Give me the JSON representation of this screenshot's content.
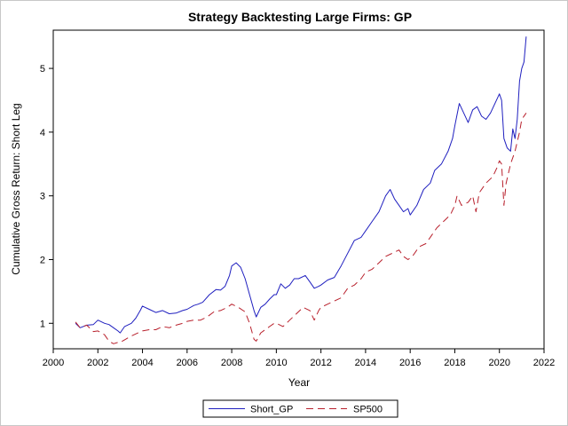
{
  "chart_data": {
    "type": "line",
    "title": "Strategy Backtesting Large Firms: GP",
    "xlabel": "Year",
    "ylabel": "Cumulative Gross Return: Short Leg",
    "xlim": [
      2000,
      2022
    ],
    "ylim": [
      0.6,
      5.6
    ],
    "x_ticks": [
      2000,
      2002,
      2004,
      2006,
      2008,
      2010,
      2012,
      2014,
      2016,
      2018,
      2020,
      2022
    ],
    "y_ticks": [
      1,
      2,
      3,
      4,
      5
    ],
    "grid": false,
    "legend_position": "bottom-center",
    "series": [
      {
        "name": "Short_GP",
        "color": "#1f1fbf",
        "dash": "solid",
        "x": [
          2001.0,
          2001.2,
          2001.5,
          2001.8,
          2002.0,
          2002.3,
          2002.5,
          2002.7,
          2002.9,
          2003.0,
          2003.2,
          2003.5,
          2003.7,
          2003.9,
          2004.0,
          2004.3,
          2004.6,
          2004.9,
          2005.2,
          2005.5,
          2005.8,
          2006.0,
          2006.3,
          2006.5,
          2006.7,
          2007.0,
          2007.3,
          2007.5,
          2007.7,
          2007.9,
          2008.0,
          2008.2,
          2008.4,
          2008.6,
          2008.8,
          2009.0,
          2009.1,
          2009.3,
          2009.5,
          2009.7,
          2009.9,
          2010.0,
          2010.2,
          2010.4,
          2010.6,
          2010.8,
          2011.0,
          2011.3,
          2011.5,
          2011.7,
          2011.9,
          2012.0,
          2012.3,
          2012.6,
          2012.9,
          2013.2,
          2013.5,
          2013.8,
          2014.0,
          2014.3,
          2014.6,
          2014.9,
          2015.1,
          2015.3,
          2015.5,
          2015.7,
          2015.9,
          2016.0,
          2016.3,
          2016.6,
          2016.9,
          2017.1,
          2017.4,
          2017.7,
          2017.9,
          2018.0,
          2018.2,
          2018.4,
          2018.6,
          2018.8,
          2019.0,
          2019.2,
          2019.4,
          2019.6,
          2019.8,
          2020.0,
          2020.1,
          2020.2,
          2020.35,
          2020.5,
          2020.6,
          2020.7,
          2020.8,
          2020.9,
          2021.0,
          2021.1,
          2021.2
        ],
        "y": [
          1.0,
          0.93,
          0.97,
          0.98,
          1.05,
          1.0,
          0.98,
          0.93,
          0.88,
          0.85,
          0.95,
          1.0,
          1.08,
          1.2,
          1.27,
          1.22,
          1.17,
          1.2,
          1.15,
          1.16,
          1.2,
          1.22,
          1.28,
          1.3,
          1.33,
          1.45,
          1.53,
          1.52,
          1.58,
          1.75,
          1.9,
          1.95,
          1.88,
          1.7,
          1.45,
          1.2,
          1.1,
          1.25,
          1.3,
          1.38,
          1.45,
          1.45,
          1.62,
          1.55,
          1.6,
          1.7,
          1.7,
          1.75,
          1.65,
          1.55,
          1.58,
          1.6,
          1.68,
          1.72,
          1.9,
          2.1,
          2.3,
          2.35,
          2.45,
          2.6,
          2.75,
          3.0,
          3.1,
          2.95,
          2.85,
          2.75,
          2.8,
          2.7,
          2.85,
          3.1,
          3.2,
          3.4,
          3.5,
          3.7,
          3.9,
          4.1,
          4.45,
          4.3,
          4.15,
          4.35,
          4.4,
          4.25,
          4.2,
          4.3,
          4.45,
          4.6,
          4.5,
          3.9,
          3.75,
          3.7,
          4.05,
          3.9,
          4.2,
          4.8,
          5.0,
          5.1,
          5.5
        ]
      },
      {
        "name": "SP500",
        "color": "#b8202c",
        "dash": "dashed",
        "x": [
          2001.0,
          2001.2,
          2001.5,
          2001.8,
          2002.0,
          2002.3,
          2002.5,
          2002.7,
          2002.9,
          2003.0,
          2003.2,
          2003.5,
          2003.8,
          2004.0,
          2004.3,
          2004.6,
          2004.9,
          2005.2,
          2005.5,
          2005.8,
          2006.0,
          2006.3,
          2006.6,
          2006.9,
          2007.2,
          2007.5,
          2007.8,
          2008.0,
          2008.3,
          2008.6,
          2008.8,
          2009.0,
          2009.1,
          2009.3,
          2009.5,
          2009.7,
          2009.9,
          2010.0,
          2010.3,
          2010.6,
          2010.9,
          2011.2,
          2011.5,
          2011.7,
          2011.9,
          2012.0,
          2012.3,
          2012.6,
          2012.9,
          2013.2,
          2013.5,
          2013.8,
          2014.0,
          2014.3,
          2014.6,
          2014.9,
          2015.2,
          2015.5,
          2015.7,
          2015.9,
          2016.1,
          2016.4,
          2016.7,
          2016.9,
          2017.2,
          2017.5,
          2017.8,
          2018.0,
          2018.1,
          2018.3,
          2018.6,
          2018.8,
          2018.95,
          2019.1,
          2019.4,
          2019.7,
          2019.9,
          2020.0,
          2020.1,
          2020.2,
          2020.3,
          2020.5,
          2020.7,
          2020.9,
          2021.0,
          2021.2
        ],
        "y": [
          1.02,
          0.93,
          0.97,
          0.87,
          0.88,
          0.82,
          0.72,
          0.68,
          0.7,
          0.7,
          0.74,
          0.8,
          0.85,
          0.88,
          0.9,
          0.9,
          0.95,
          0.93,
          0.97,
          1.0,
          1.03,
          1.05,
          1.05,
          1.1,
          1.18,
          1.2,
          1.25,
          1.3,
          1.25,
          1.18,
          1.0,
          0.75,
          0.72,
          0.85,
          0.9,
          0.95,
          1.0,
          1.0,
          0.95,
          1.05,
          1.15,
          1.25,
          1.2,
          1.05,
          1.2,
          1.25,
          1.3,
          1.35,
          1.4,
          1.55,
          1.6,
          1.7,
          1.8,
          1.85,
          1.95,
          2.05,
          2.1,
          2.15,
          2.05,
          2.0,
          2.05,
          2.2,
          2.25,
          2.35,
          2.5,
          2.6,
          2.7,
          2.85,
          3.0,
          2.85,
          2.9,
          3.0,
          2.75,
          3.05,
          3.2,
          3.3,
          3.45,
          3.55,
          3.5,
          2.85,
          3.2,
          3.5,
          3.7,
          4.0,
          4.2,
          4.3
        ]
      }
    ]
  }
}
